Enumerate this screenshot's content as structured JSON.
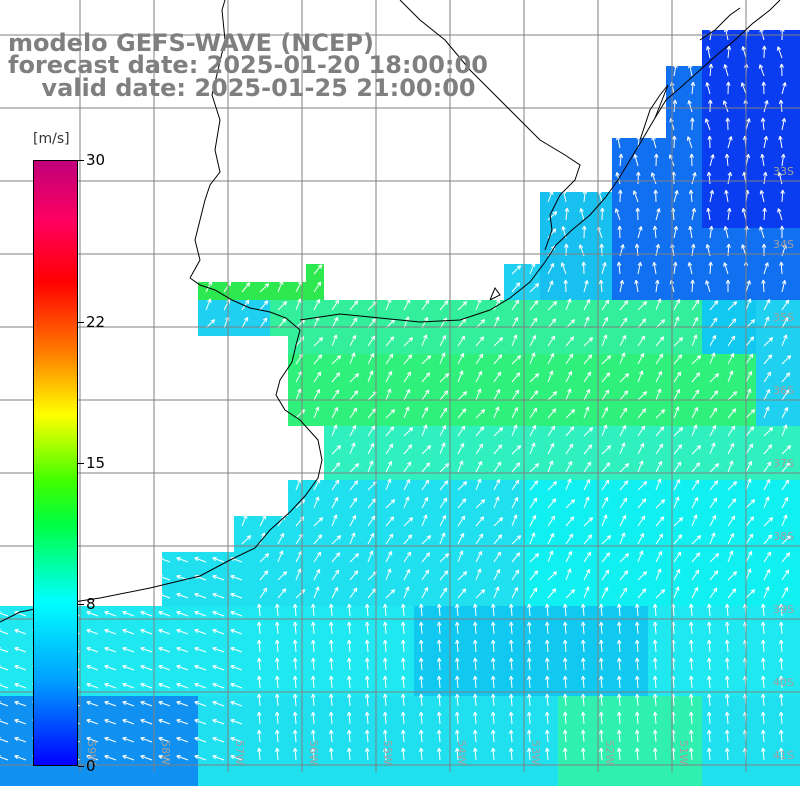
{
  "header": {
    "model": "modelo GEFS-WAVE (NCEP)",
    "forecast": "forecast date: 2025-01-20 18:00:00",
    "valid": "valid date: 2025-01-25 21:00:00"
  },
  "colorbar": {
    "unit": "[m/s]",
    "ticks": [
      "30",
      "22",
      "15",
      "8",
      "0"
    ],
    "tick_values": [
      30,
      22,
      15,
      8,
      0
    ],
    "colors": [
      "#0000ff",
      "#00a0ff",
      "#00ffff",
      "#00ff40",
      "#40ff00",
      "#ffff00",
      "#ff8000",
      "#ff0000",
      "#c0007a"
    ]
  },
  "lat_labels": [
    "33S",
    "34S",
    "35S",
    "36S",
    "37S",
    "38S",
    "39S",
    "40S",
    "41S"
  ],
  "lon_labels": [
    "59W",
    "58W",
    "57W",
    "56W",
    "55W",
    "54W",
    "53W",
    "52W",
    "51W"
  ],
  "colors": {
    "land": "#ffffff",
    "coast": "#000000",
    "grid": "#808080",
    "arrow": "#ffffff"
  }
}
